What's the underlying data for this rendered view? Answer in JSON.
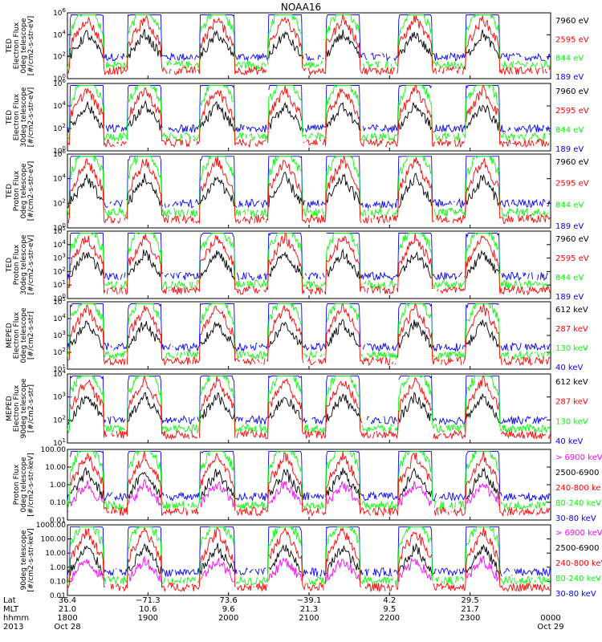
{
  "title": "NOAA16",
  "colors": {
    "blue": "#0000ff",
    "red": "#ff0000",
    "green": "#00ff00",
    "black": "#000000",
    "magenta": "#ff00ff"
  },
  "x_axis": {
    "rows": [
      "Lat",
      "MLT",
      "hhmm",
      "2013"
    ],
    "ticks": [
      {
        "lat": "36.4",
        "mlt": "21.0",
        "hhmm": "1800",
        "date": "Oct 28"
      },
      {
        "lat": "−71.3",
        "mlt": "10.6",
        "hhmm": "1900",
        "date": ""
      },
      {
        "lat": "73.6",
        "mlt": "9.6",
        "hhmm": "2000",
        "date": ""
      },
      {
        "lat": "−39.1",
        "mlt": "21.3",
        "hhmm": "2100",
        "date": ""
      },
      {
        "lat": "4.2",
        "mlt": "9.5",
        "hhmm": "2200",
        "date": ""
      },
      {
        "lat": "29.5",
        "mlt": "21.7",
        "hhmm": "2300",
        "date": ""
      },
      {
        "lat": "",
        "mlt": "",
        "hhmm": "0000",
        "date": "Oct 29"
      }
    ]
  },
  "chart_data": [
    {
      "type": "line",
      "instrument": "TED",
      "ylabel": [
        "TED",
        "Electron Flux",
        "0deg telescope",
        "[#/cm2-s-str-eV]"
      ],
      "yscale": "log",
      "ylim_exp": [
        0,
        6
      ],
      "ticks": [
        {
          "label": "10",
          "exp": "0",
          "e": 0
        },
        {
          "label": "10",
          "exp": "2",
          "e": 2
        },
        {
          "label": "10",
          "exp": "4",
          "e": 4
        },
        {
          "label": "10",
          "exp": "6",
          "e": 6
        }
      ],
      "series": [
        {
          "name": "7960 eV",
          "color": "#000000"
        },
        {
          "name": "2595 eV",
          "color": "#ff0000"
        },
        {
          "name": "844 eV",
          "color": "#00ff00"
        },
        {
          "name": "189 eV",
          "color": "#0000ff"
        }
      ]
    },
    {
      "type": "line",
      "instrument": "TED",
      "ylabel": [
        "TED",
        "Electron Flux",
        "30deg telescope",
        "[#/cm2-s-str-eV]"
      ],
      "yscale": "log",
      "ylim_exp": [
        0,
        6
      ],
      "ticks": [
        {
          "label": "10",
          "exp": "0",
          "e": 0
        },
        {
          "label": "10",
          "exp": "2",
          "e": 2
        },
        {
          "label": "10",
          "exp": "4",
          "e": 4
        },
        {
          "label": "10",
          "exp": "6",
          "e": 6
        }
      ],
      "series": [
        {
          "name": "7960 eV",
          "color": "#000000"
        },
        {
          "name": "2595 eV",
          "color": "#ff0000"
        },
        {
          "name": "844 eV",
          "color": "#00ff00"
        },
        {
          "name": "189 eV",
          "color": "#0000ff"
        }
      ]
    },
    {
      "type": "line",
      "instrument": "TED",
      "ylabel": [
        "TED",
        "Proton Flux",
        "0deg telescope",
        "[#/cm2-s-str-eV]"
      ],
      "yscale": "log",
      "ylim_exp": [
        0,
        6
      ],
      "ticks": [
        {
          "label": "10",
          "exp": "0",
          "e": 0
        },
        {
          "label": "10",
          "exp": "2",
          "e": 2
        },
        {
          "label": "10",
          "exp": "4",
          "e": 4
        },
        {
          "label": "10",
          "exp": "6",
          "e": 6
        }
      ],
      "series": [
        {
          "name": "7960 eV",
          "color": "#000000"
        },
        {
          "name": "2595 eV",
          "color": "#ff0000"
        },
        {
          "name": "844 eV",
          "color": "#00ff00"
        },
        {
          "name": "189 eV",
          "color": "#0000ff"
        }
      ]
    },
    {
      "type": "line",
      "instrument": "TED",
      "ylabel": [
        "TED",
        "Proton Flux",
        "30deg telescope",
        "[#/cm2-s-str-eV]"
      ],
      "yscale": "log",
      "ylim_exp": [
        0,
        5
      ],
      "ticks": [
        {
          "label": "10",
          "exp": "0",
          "e": 0
        },
        {
          "label": "10",
          "exp": "1",
          "e": 1
        },
        {
          "label": "10",
          "exp": "2",
          "e": 2
        },
        {
          "label": "10",
          "exp": "3",
          "e": 3
        },
        {
          "label": "10",
          "exp": "4",
          "e": 4
        },
        {
          "label": "10",
          "exp": "5",
          "e": 5
        }
      ],
      "series": [
        {
          "name": "7960 eV",
          "color": "#000000"
        },
        {
          "name": "2595 eV",
          "color": "#ff0000"
        },
        {
          "name": "844 eV",
          "color": "#00ff00"
        },
        {
          "name": "189 eV",
          "color": "#0000ff"
        }
      ]
    },
    {
      "type": "line",
      "instrument": "MEPED",
      "ylabel": [
        "MEPED",
        "Electron Flux",
        "0deg telescope",
        "[#/cm2-s-str]"
      ],
      "yscale": "log",
      "ylim_exp": [
        1,
        5
      ],
      "ticks": [
        {
          "label": "10",
          "exp": "1",
          "e": 1
        },
        {
          "label": "10",
          "exp": "2",
          "e": 2
        },
        {
          "label": "10",
          "exp": "3",
          "e": 3
        },
        {
          "label": "10",
          "exp": "4",
          "e": 4
        },
        {
          "label": "10",
          "exp": "5",
          "e": 5
        }
      ],
      "series": [
        {
          "name": "612 keV",
          "color": "#000000"
        },
        {
          "name": "287 keV",
          "color": "#ff0000"
        },
        {
          "name": "130 keV",
          "color": "#00ff00"
        },
        {
          "name": "40 keV",
          "color": "#0000ff"
        }
      ]
    },
    {
      "type": "line",
      "instrument": "MEPED",
      "ylabel": [
        "MEPED",
        "Electron Flux",
        "90deg telescope",
        "[#/cm2-s-str]"
      ],
      "yscale": "log",
      "ylim_exp": [
        1,
        4
      ],
      "ticks": [
        {
          "label": "10",
          "exp": "1",
          "e": 1
        },
        {
          "label": "10",
          "exp": "2",
          "e": 2
        },
        {
          "label": "10",
          "exp": "3",
          "e": 3
        },
        {
          "label": "10",
          "exp": "4",
          "e": 4
        }
      ],
      "series": [
        {
          "name": "612 keV",
          "color": "#000000"
        },
        {
          "name": "287 keV",
          "color": "#ff0000"
        },
        {
          "name": "130 keV",
          "color": "#00ff00"
        },
        {
          "name": "40 keV",
          "color": "#0000ff"
        }
      ]
    },
    {
      "type": "line",
      "instrument": "MEPED",
      "ylabel": [
        "Proton Flux",
        "0deg telescope",
        "[#/cm2-s-str-keV]"
      ],
      "yscale": "log",
      "ylim_exp": [
        -2,
        2
      ],
      "ticks": [
        {
          "label": "0.01",
          "exp": "",
          "e": -2
        },
        {
          "label": "0.10",
          "exp": "",
          "e": -1
        },
        {
          "label": "1.00",
          "exp": "",
          "e": 0
        },
        {
          "label": "10.00",
          "exp": "",
          "e": 1
        },
        {
          "label": "100.00",
          "exp": "",
          "e": 2
        }
      ],
      "series": [
        {
          "name": "> 6900 keV",
          "color": "#ff00ff"
        },
        {
          "name": "2500-6900",
          "color": "#000000"
        },
        {
          "name": "240-800 ke",
          "color": "#ff0000"
        },
        {
          "name": "80-240 keV",
          "color": "#00ff00"
        },
        {
          "name": "30-80 keV",
          "color": "#0000ff"
        }
      ]
    },
    {
      "type": "line",
      "instrument": "MEPED",
      "ylabel": [
        "90deg telescope",
        "[#/cm2-s-str-keV]"
      ],
      "yscale": "log",
      "ylim_exp": [
        -2,
        3
      ],
      "ticks": [
        {
          "label": "0.01",
          "exp": "",
          "e": -2
        },
        {
          "label": "0.10",
          "exp": "",
          "e": -1
        },
        {
          "label": "1.00",
          "exp": "",
          "e": 0
        },
        {
          "label": "10.00",
          "exp": "",
          "e": 1
        },
        {
          "label": "100.00",
          "exp": "",
          "e": 2
        },
        {
          "label": "1000.00",
          "exp": "",
          "e": 3
        }
      ],
      "series": [
        {
          "name": "> 6900 keV",
          "color": "#ff00ff"
        },
        {
          "name": "2500-6900",
          "color": "#000000"
        },
        {
          "name": "240-800 keV",
          "color": "#ff0000"
        },
        {
          "name": "80-240 keV",
          "color": "#00ff00"
        },
        {
          "name": "30-80 keV",
          "color": "#0000ff"
        }
      ]
    }
  ]
}
